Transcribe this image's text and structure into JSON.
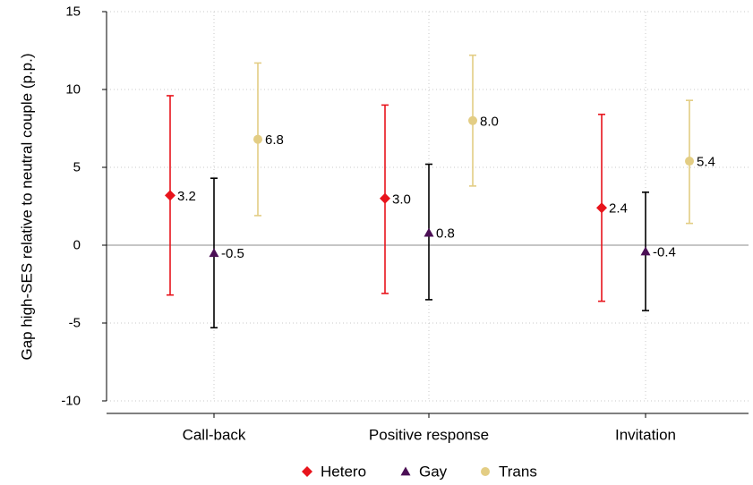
{
  "chart_data": {
    "type": "scatter",
    "subtype": "point-with-error-bars",
    "title": "",
    "xlabel": "",
    "ylabel": "Gap high-SES relative to neutral couple (p.p.)",
    "ylim": [
      -10,
      15
    ],
    "yticks": [
      -10,
      -5,
      0,
      5,
      10,
      15
    ],
    "grid": true,
    "zero_line": true,
    "legend_position": "bottom",
    "categories": [
      "Call-back",
      "Positive response",
      "Invitation"
    ],
    "series": [
      {
        "name": "Hetero",
        "color": "#e8141c",
        "marker": "diamond",
        "values": [
          3.2,
          3.0,
          2.4
        ],
        "value_labels": [
          "3.2",
          "3.0",
          "2.4"
        ],
        "ci_low": [
          -3.2,
          -3.1,
          -3.6
        ],
        "ci_high": [
          9.6,
          9.0,
          8.4
        ]
      },
      {
        "name": "Gay",
        "color": "#4b0f55",
        "bar_color": "#000000",
        "marker": "triangle",
        "values": [
          -0.5,
          0.8,
          -0.4
        ],
        "value_labels": [
          "-0.5",
          "0.8",
          "-0.4"
        ],
        "ci_low": [
          -5.3,
          -3.5,
          -4.2
        ],
        "ci_high": [
          4.3,
          5.2,
          3.4
        ]
      },
      {
        "name": "Trans",
        "color": "#e3cd84",
        "marker": "circle",
        "values": [
          6.8,
          8.0,
          5.4
        ],
        "value_labels": [
          "6.8",
          "8.0",
          "5.4"
        ],
        "ci_low": [
          1.9,
          3.8,
          1.4
        ],
        "ci_high": [
          11.7,
          12.2,
          9.3
        ]
      }
    ]
  }
}
